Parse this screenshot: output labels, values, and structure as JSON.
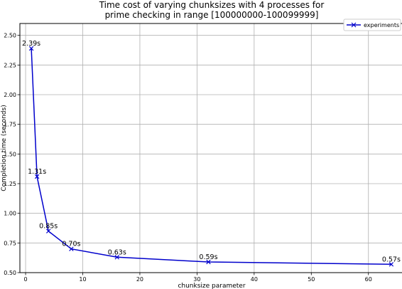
{
  "chart_data": {
    "type": "line",
    "title_lines": [
      "Time cost of varying chunksizes with 4 processes for",
      "prime checking in range [100000000-100099999]"
    ],
    "xlabel": "chunksize parameter",
    "ylabel": "Completion time (seconds)",
    "xlim": [
      -1,
      66
    ],
    "ylim": [
      0.5,
      2.6
    ],
    "x_ticks": [
      0,
      10,
      20,
      30,
      40,
      50,
      60
    ],
    "y_ticks": [
      0.5,
      0.75,
      1.0,
      1.25,
      1.5,
      1.75,
      2.0,
      2.25,
      2.5
    ],
    "x_tick_labels": [
      "0",
      "10",
      "20",
      "30",
      "40",
      "50",
      "60"
    ],
    "y_tick_labels": [
      "0.50",
      "0.75",
      "1.00",
      "1.25",
      "1.50",
      "1.75",
      "2.00",
      "2.25",
      "2.50"
    ],
    "grid": true,
    "legend_placement": "top-right",
    "series": [
      {
        "name": "experiments",
        "color": "#0000cc",
        "marker": "x",
        "x": [
          1,
          2,
          4,
          8,
          16,
          32,
          64
        ],
        "y": [
          2.39,
          1.31,
          0.85,
          0.7,
          0.63,
          0.59,
          0.57
        ],
        "labels": [
          "2.39s",
          "1.31s",
          "0.85s",
          "0.70s",
          "0.63s",
          "0.59s",
          "0.57s"
        ]
      }
    ]
  }
}
